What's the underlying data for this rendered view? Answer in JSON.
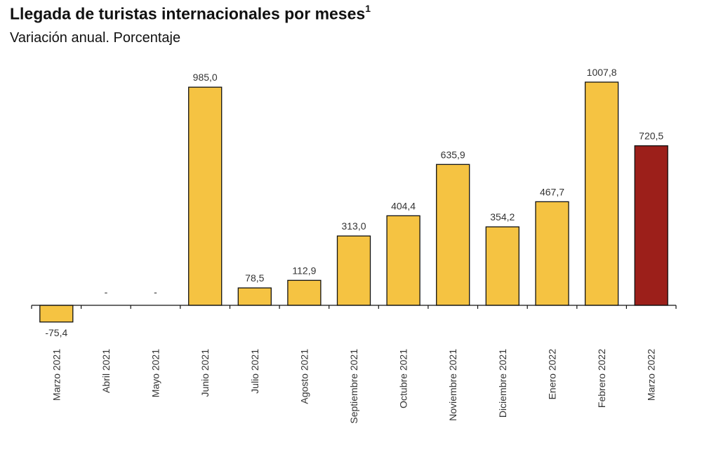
{
  "header": {
    "title": "Llegada de turistas internacionales por meses",
    "title_superscript": "1",
    "subtitle": "Variación anual. Porcentaje"
  },
  "chart_data": {
    "type": "bar",
    "title": "Llegada de turistas internacionales por meses",
    "subtitle": "Variación anual. Porcentaje",
    "xlabel": "",
    "ylabel": "",
    "ylim": [
      -100,
      1100
    ],
    "grid": false,
    "legend": "none",
    "categories": [
      "Marzo 2021",
      "Abril 2021",
      "Mayo 2021",
      "Junio 2021",
      "Julio 2021",
      "Agosto 2021",
      "Septiembre 2021",
      "Octubre 2021",
      "Noviembre 2021",
      "Diciembre 2021",
      "Enero 2022",
      "Febrero 2022",
      "Marzo 2022"
    ],
    "values": [
      -75.4,
      null,
      null,
      985.0,
      78.5,
      112.9,
      313.0,
      404.4,
      635.9,
      354.2,
      467.7,
      1007.8,
      720.5
    ],
    "value_labels": [
      "-75,4",
      "-",
      "-",
      "985,0",
      "78,5",
      "112,9",
      "313,0",
      "404,4",
      "635,9",
      "354,2",
      "467,7",
      "1007,8",
      "720,5"
    ],
    "colors": {
      "default": "#F5C342",
      "highlight": "#9C1F1A",
      "stroke": "#111111"
    },
    "highlight_index": 12
  }
}
